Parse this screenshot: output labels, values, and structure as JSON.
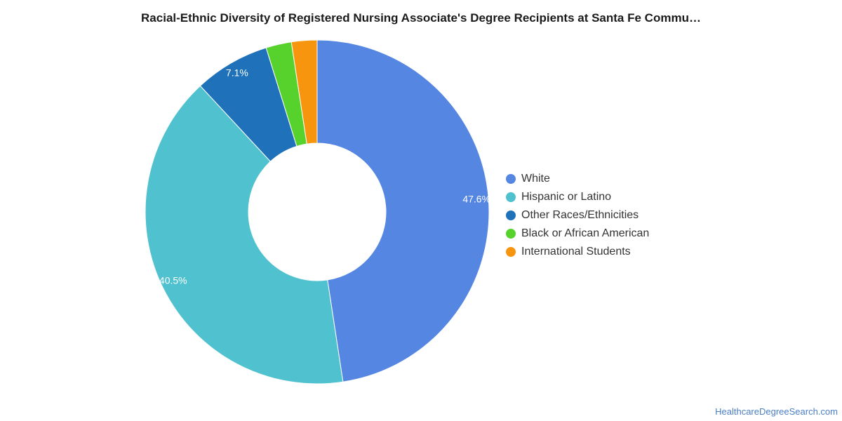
{
  "chart_data": {
    "type": "pie",
    "subtype": "donut",
    "title": "Racial-Ethnic Diversity of Registered Nursing Associate's Degree Recipients at Santa Fe Commu…",
    "slices": [
      {
        "name": "White",
        "value": 47.6,
        "label": "47.6%",
        "color": "#5586e2"
      },
      {
        "name": "Hispanic or Latino",
        "value": 40.5,
        "label": "40.5%",
        "color": "#50c1ce"
      },
      {
        "name": "Other Races/Ethnicities",
        "value": 7.1,
        "label": "7.1%",
        "color": "#1f72ba"
      },
      {
        "name": "Black or African American",
        "value": 2.4,
        "label": "",
        "color": "#57d12c"
      },
      {
        "name": "International Students",
        "value": 2.4,
        "label": "",
        "color": "#f7960e"
      }
    ],
    "legend_position": "right"
  },
  "source": "HealthcareDegreeSearch.com"
}
